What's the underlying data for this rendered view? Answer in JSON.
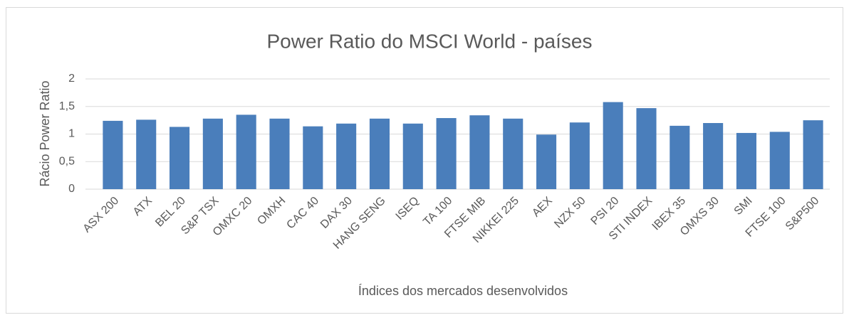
{
  "chart_data": {
    "type": "bar",
    "title": "Power Ratio do MSCI World - países",
    "ylabel": "Rácio Power Ratio",
    "xlabel": "Índices dos mercados desenvolvidos",
    "categories": [
      "ASX 200",
      "ATX",
      "BEL 20",
      "S&P TSX",
      "OMXC 20",
      "OMXH",
      "CAC 40",
      "DAX 30",
      "HANG SENG",
      "ISEQ",
      "TA 100",
      "FTSE MIB",
      "NIKKEI 225",
      "AEX",
      "NZX 50",
      "PSI 20",
      "STI INDEX",
      "IBEX 35",
      "OMXS 30",
      "SMI",
      "FTSE 100",
      "S&P500"
    ],
    "values": [
      1.24,
      1.26,
      1.13,
      1.28,
      1.35,
      1.28,
      1.14,
      1.19,
      1.28,
      1.19,
      1.29,
      1.34,
      1.28,
      0.99,
      1.21,
      1.58,
      1.47,
      1.15,
      1.2,
      1.02,
      1.04,
      1.25
    ],
    "color": "#4a7ebb",
    "ylim": [
      0,
      2
    ],
    "yticks": [
      0,
      {
        "value": 0.5,
        "label": "0,5"
      },
      1,
      {
        "value": 1.5,
        "label": "1,5"
      },
      2
    ],
    "grid": true
  }
}
